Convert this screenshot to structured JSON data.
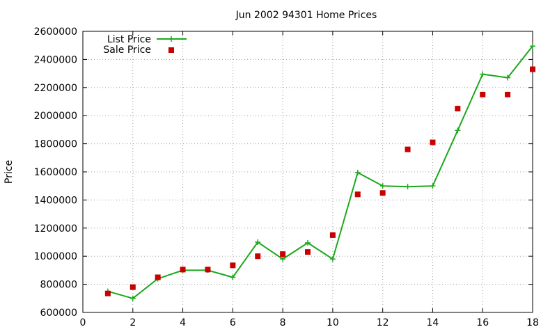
{
  "chart_data": {
    "type": "line",
    "title": "Jun 2002 94301 Home Prices",
    "xlabel": "",
    "ylabel": "Price",
    "xlim": [
      0,
      18
    ],
    "ylim": [
      600000,
      2600000
    ],
    "x_ticks": [
      0,
      2,
      4,
      6,
      8,
      10,
      12,
      14,
      16,
      18
    ],
    "y_ticks": [
      600000,
      800000,
      1000000,
      1200000,
      1400000,
      1600000,
      1800000,
      2000000,
      2200000,
      2400000,
      2600000
    ],
    "grid": true,
    "legend_position": "top-left",
    "series": [
      {
        "name": "List Price",
        "style": "line-with-plus-markers",
        "color": "#1ba81b",
        "x": [
          1,
          2,
          3,
          4,
          5,
          6,
          7,
          8,
          9,
          10,
          11,
          12,
          13,
          14,
          15,
          16,
          17,
          18
        ],
        "y": [
          750000,
          700000,
          840000,
          900000,
          900000,
          850000,
          1100000,
          980000,
          1095000,
          980000,
          1595000,
          1500000,
          1495000,
          1500000,
          1895000,
          2295000,
          2270000,
          2495000
        ]
      },
      {
        "name": "Sale Price",
        "style": "square-points",
        "color": "#c80000",
        "x": [
          1,
          2,
          3,
          4,
          5,
          6,
          7,
          8,
          9,
          10,
          11,
          12,
          13,
          14,
          15,
          16,
          17,
          18
        ],
        "y": [
          735000,
          780000,
          850000,
          905000,
          905000,
          935000,
          1000000,
          1015000,
          1030000,
          1150000,
          1440000,
          1450000,
          1760000,
          1810000,
          2050000,
          2150000,
          2150000,
          2330000
        ]
      }
    ]
  }
}
